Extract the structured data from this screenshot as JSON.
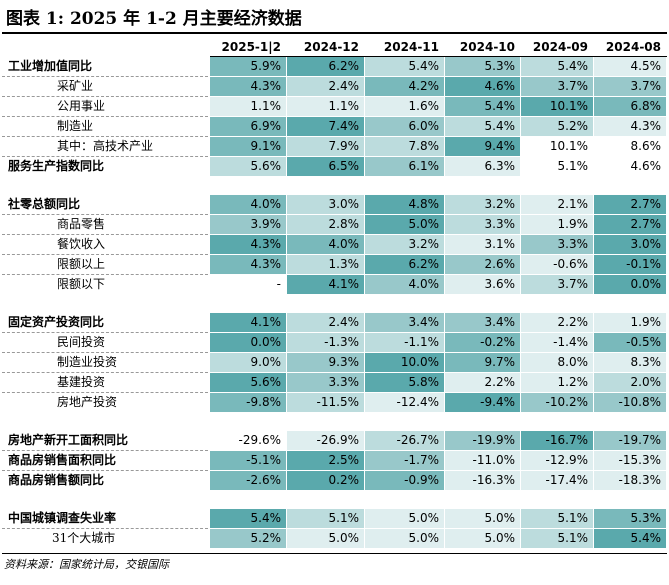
{
  "title": "图表 1: 2025 年 1-2 月主要经济数据",
  "columns": [
    "2025-1|2",
    "2024-12",
    "2024-11",
    "2024-10",
    "2024-09",
    "2024-08"
  ],
  "rows": [
    {
      "label": "工业增加值同比",
      "style": "bold",
      "values": [
        "5.9%",
        "6.2%",
        "5.4%",
        "5.3%",
        "5.4%",
        "4.5%"
      ],
      "shades": [
        2,
        1,
        4,
        3,
        4,
        5
      ]
    },
    {
      "label": "采矿业",
      "style": "indent",
      "values": [
        "4.3%",
        "2.4%",
        "4.2%",
        "4.6%",
        "3.7%",
        "3.7%"
      ],
      "shades": [
        2,
        4,
        2,
        1,
        3,
        3
      ]
    },
    {
      "label": "公用事业",
      "style": "indent",
      "values": [
        "1.1%",
        "1.1%",
        "1.6%",
        "5.4%",
        "10.1%",
        "6.8%"
      ],
      "shades": [
        5,
        5,
        5,
        2,
        1,
        2
      ]
    },
    {
      "label": "制造业",
      "style": "indent",
      "values": [
        "6.9%",
        "7.4%",
        "6.0%",
        "5.4%",
        "5.2%",
        "4.3%"
      ],
      "shades": [
        2,
        1,
        3,
        4,
        4,
        5
      ]
    },
    {
      "label": "其中：高技术产业",
      "style": "indent",
      "values": [
        "9.1%",
        "7.9%",
        "7.8%",
        "9.4%",
        "10.1%",
        "8.6%"
      ],
      "shades": [
        2,
        4,
        4,
        1,
        0,
        0
      ]
    },
    {
      "label": "服务生产指数同比",
      "style": "bold",
      "values": [
        "5.6%",
        "6.5%",
        "6.1%",
        "6.3%",
        "5.1%",
        "4.6%"
      ],
      "shades": [
        4,
        1,
        3,
        5,
        0,
        0
      ]
    },
    {
      "gap": true
    },
    {
      "label": "社零总额同比",
      "style": "bold",
      "values": [
        "4.0%",
        "3.0%",
        "4.8%",
        "3.2%",
        "2.1%",
        "2.7%"
      ],
      "shades": [
        2,
        4,
        1,
        4,
        5,
        1
      ]
    },
    {
      "label": "商品零售",
      "style": "indent",
      "values": [
        "3.9%",
        "2.8%",
        "5.0%",
        "3.3%",
        "1.9%",
        "2.7%"
      ],
      "shades": [
        3,
        4,
        1,
        4,
        5,
        1
      ]
    },
    {
      "label": "餐饮收入",
      "style": "indent",
      "values": [
        "4.3%",
        "4.0%",
        "3.2%",
        "3.1%",
        "3.3%",
        "3.0%"
      ],
      "shades": [
        1,
        2,
        4,
        5,
        3,
        1
      ]
    },
    {
      "label": "限额以上",
      "style": "indent",
      "values": [
        "4.3%",
        "1.3%",
        "6.2%",
        "2.6%",
        "-0.6%",
        "-0.1%"
      ],
      "shades": [
        2,
        4,
        1,
        3,
        5,
        1
      ]
    },
    {
      "label": "限额以下",
      "style": "indent",
      "values": [
        "-",
        "4.1%",
        "4.0%",
        "3.6%",
        "3.7%",
        "0.0%"
      ],
      "shades": [
        0,
        1,
        3,
        5,
        4,
        1
      ]
    },
    {
      "gap": true
    },
    {
      "label": "固定资产投资同比",
      "style": "bold",
      "values": [
        "4.1%",
        "2.4%",
        "3.4%",
        "3.4%",
        "2.2%",
        "1.9%"
      ],
      "shades": [
        1,
        4,
        3,
        3,
        5,
        5
      ]
    },
    {
      "label": "民间投资",
      "style": "indent",
      "values": [
        "0.0%",
        "-1.3%",
        "-1.1%",
        "-0.2%",
        "-1.4%",
        "-0.5%"
      ],
      "shades": [
        1,
        4,
        4,
        2,
        5,
        2
      ]
    },
    {
      "label": "制造业投资",
      "style": "indent",
      "values": [
        "9.0%",
        "9.3%",
        "10.0%",
        "9.7%",
        "8.0%",
        "8.3%"
      ],
      "shades": [
        4,
        3,
        1,
        2,
        5,
        5
      ]
    },
    {
      "label": "基建投资",
      "style": "indent",
      "values": [
        "5.6%",
        "3.3%",
        "5.8%",
        "2.2%",
        "1.2%",
        "2.0%"
      ],
      "shades": [
        1,
        3,
        1,
        5,
        5,
        4
      ]
    },
    {
      "label": "房地产投资",
      "style": "indent",
      "values": [
        "-9.8%",
        "-11.5%",
        "-12.4%",
        "-9.4%",
        "-10.2%",
        "-10.8%"
      ],
      "shades": [
        2,
        4,
        5,
        1,
        3,
        3
      ]
    },
    {
      "gap": true
    },
    {
      "label": "房地产新开工面积同比",
      "style": "bold",
      "values": [
        "-29.6%",
        "-26.9%",
        "-26.7%",
        "-19.9%",
        "-16.7%",
        "-19.7%"
      ],
      "shades": [
        0,
        5,
        4,
        3,
        1,
        3
      ]
    },
    {
      "label": "商品房销售面积同比",
      "style": "bold",
      "values": [
        "-5.1%",
        "2.5%",
        "-1.7%",
        "-11.0%",
        "-12.9%",
        "-15.3%"
      ],
      "shades": [
        2,
        1,
        3,
        5,
        5,
        5
      ]
    },
    {
      "label": "商品房销售额同比",
      "style": "bold",
      "values": [
        "-2.6%",
        "0.2%",
        "-0.9%",
        "-16.3%",
        "-17.4%",
        "-18.3%"
      ],
      "shades": [
        2,
        1,
        2,
        5,
        5,
        5
      ]
    },
    {
      "gap": true
    },
    {
      "label": "中国城镇调查失业率",
      "style": "bold",
      "values": [
        "5.4%",
        "5.1%",
        "5.0%",
        "5.0%",
        "5.1%",
        "5.3%"
      ],
      "shades": [
        1,
        4,
        5,
        5,
        4,
        2
      ]
    },
    {
      "label": "31个大城市",
      "style": "indent2",
      "values": [
        "5.2%",
        "5.0%",
        "5.0%",
        "5.0%",
        "5.1%",
        "5.4%"
      ],
      "shades": [
        3,
        5,
        5,
        5,
        4,
        1
      ]
    }
  ],
  "palette": {
    "0": "#ffffff",
    "1": "#5aa9ac",
    "2": "#79b9bb",
    "3": "#98c8ca",
    "4": "#bcdcdd",
    "5": "#dfeeef"
  },
  "source": "资料来源：国家统计局，交银国际"
}
